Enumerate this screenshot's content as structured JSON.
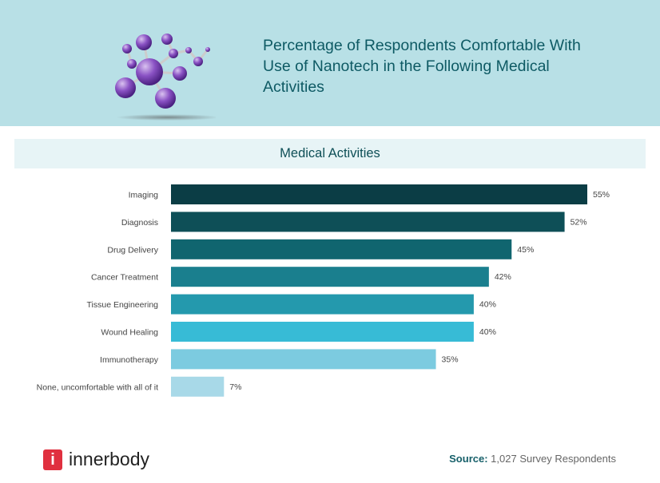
{
  "header": {
    "title": "Percentage of Respondents Comfortable With Use of Nanotech in the Following Medical Activities",
    "illustration": "molecule-icon"
  },
  "chart_data": {
    "type": "bar",
    "orientation": "horizontal",
    "title": "Medical Activities",
    "categories": [
      "Imaging",
      "Diagnosis",
      "Drug Delivery",
      "Cancer Treatment",
      "Tissue Engineering",
      "Wound Healing",
      "Immunotherapy",
      "None, uncomfortable with all of it"
    ],
    "values": [
      55,
      52,
      45,
      42,
      40,
      40,
      35,
      7
    ],
    "labels": [
      "55%",
      "52%",
      "45%",
      "42%",
      "40%",
      "40%",
      "35%",
      "7%"
    ],
    "colors": [
      "#0b3d45",
      "#0e4f57",
      "#10656f",
      "#1a7f8e",
      "#2499ad",
      "#37bbd6",
      "#7ccbe0",
      "#a8d9e8"
    ],
    "xlim": [
      0,
      55
    ],
    "grid": false
  },
  "footer": {
    "brand": "innerbody",
    "logo_letter": "i",
    "source_label": "Source:",
    "source_text": "1,027 Survey Respondents"
  }
}
